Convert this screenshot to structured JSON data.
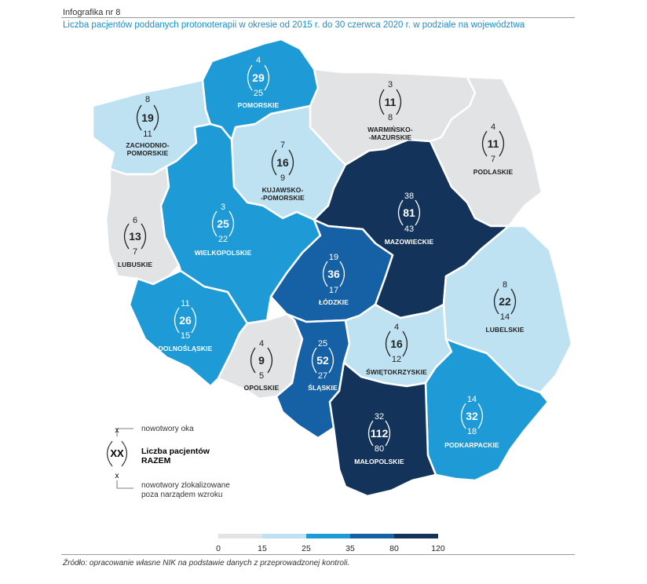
{
  "header": {
    "title": "Infografika nr 8",
    "subtitle": "Liczba pacjentów poddanych protonoterapii w okresie od 2015 r. do 30 czerwca 2020 r. w podziale na województwa"
  },
  "regions": [
    {
      "id": "zachodniopomorskie",
      "name1": "ZACHODNIO-",
      "name2": "POMORSKIE",
      "top": "8",
      "total": "19",
      "bottom": "11",
      "color": "#bfe2f2",
      "text_color": "#222222"
    },
    {
      "id": "pomorskie",
      "name1": "POMORSKIE",
      "name2": "",
      "top": "4",
      "total": "29",
      "bottom": "25",
      "color": "#1e9bd7",
      "text_color": "#ffffff"
    },
    {
      "id": "warminsko-mazurskie",
      "name1": "WARMIŃSKO-",
      "name2": "-MAZURSKIE",
      "top": "3",
      "total": "11",
      "bottom": "8",
      "color": "#e2e3e4",
      "text_color": "#222222"
    },
    {
      "id": "podlaskie",
      "name1": "PODLASKIE",
      "name2": "",
      "top": "4",
      "total": "11",
      "bottom": "7",
      "color": "#e2e3e4",
      "text_color": "#222222"
    },
    {
      "id": "kujawsko-pomorskie",
      "name1": "KUJAWSKO-",
      "name2": "-POMORSKIE",
      "top": "7",
      "total": "16",
      "bottom": "9",
      "color": "#bfe2f2",
      "text_color": "#222222"
    },
    {
      "id": "lubuskie",
      "name1": "LUBUSKIE",
      "name2": "",
      "top": "6",
      "total": "13",
      "bottom": "7",
      "color": "#e2e3e4",
      "text_color": "#222222"
    },
    {
      "id": "wielkopolskie",
      "name1": "WIELKOPOLSKIE",
      "name2": "",
      "top": "3",
      "total": "25",
      "bottom": "22",
      "color": "#1e9bd7",
      "text_color": "#ffffff"
    },
    {
      "id": "mazowieckie",
      "name1": "MAZOWIECKIE",
      "name2": "",
      "top": "38",
      "total": "81",
      "bottom": "43",
      "color": "#13335a",
      "text_color": "#ffffff"
    },
    {
      "id": "lodzkie",
      "name1": "ŁÓDZKIE",
      "name2": "",
      "top": "19",
      "total": "36",
      "bottom": "17",
      "color": "#1660a6",
      "text_color": "#ffffff"
    },
    {
      "id": "lubelskie",
      "name1": "LUBELSKIE",
      "name2": "",
      "top": "8",
      "total": "22",
      "bottom": "14",
      "color": "#bfe2f2",
      "text_color": "#222222"
    },
    {
      "id": "dolnoslaskie",
      "name1": "DOLNOŚLĄSKIE",
      "name2": "",
      "top": "11",
      "total": "26",
      "bottom": "15",
      "color": "#1e9bd7",
      "text_color": "#ffffff"
    },
    {
      "id": "opolskie",
      "name1": "OPOLSKIE",
      "name2": "",
      "top": "4",
      "total": "9",
      "bottom": "5",
      "color": "#e2e3e4",
      "text_color": "#222222"
    },
    {
      "id": "slaskie",
      "name1": "ŚLĄSKIE",
      "name2": "",
      "top": "25",
      "total": "52",
      "bottom": "27",
      "color": "#1660a6",
      "text_color": "#ffffff"
    },
    {
      "id": "swietokrzyskie",
      "name1": "ŚWIĘTOKRZYSKIE",
      "name2": "",
      "top": "4",
      "total": "16",
      "bottom": "12",
      "color": "#bfe2f2",
      "text_color": "#222222"
    },
    {
      "id": "podkarpackie",
      "name1": "PODKARPACKIE",
      "name2": "",
      "top": "14",
      "total": "32",
      "bottom": "18",
      "color": "#1e9bd7",
      "text_color": "#ffffff"
    },
    {
      "id": "malopolskie",
      "name1": "MAŁOPOLSKIE",
      "name2": "",
      "top": "32",
      "total": "112",
      "bottom": "80",
      "color": "#13335a",
      "text_color": "#ffffff"
    }
  ],
  "legend": {
    "sample_top": "x",
    "sample_total": "XX",
    "sample_bottom": "x",
    "top_desc": "nowotwory oka",
    "total_desc_1": "Liczba pacjentów",
    "total_desc_2": "RAZEM",
    "bottom_desc_1": "nowotwory zlokalizowane",
    "bottom_desc_2": "poza narządem wzroku"
  },
  "scale": {
    "colors": [
      "#e2e3e4",
      "#bfe2f2",
      "#1e9bd7",
      "#1660a6",
      "#13335a"
    ],
    "labels": [
      "0",
      "15",
      "25",
      "35",
      "80",
      "120"
    ]
  },
  "source": "Źródło: opracowanie własne NIK na podstawie danych z przeprowadzonej kontroli."
}
